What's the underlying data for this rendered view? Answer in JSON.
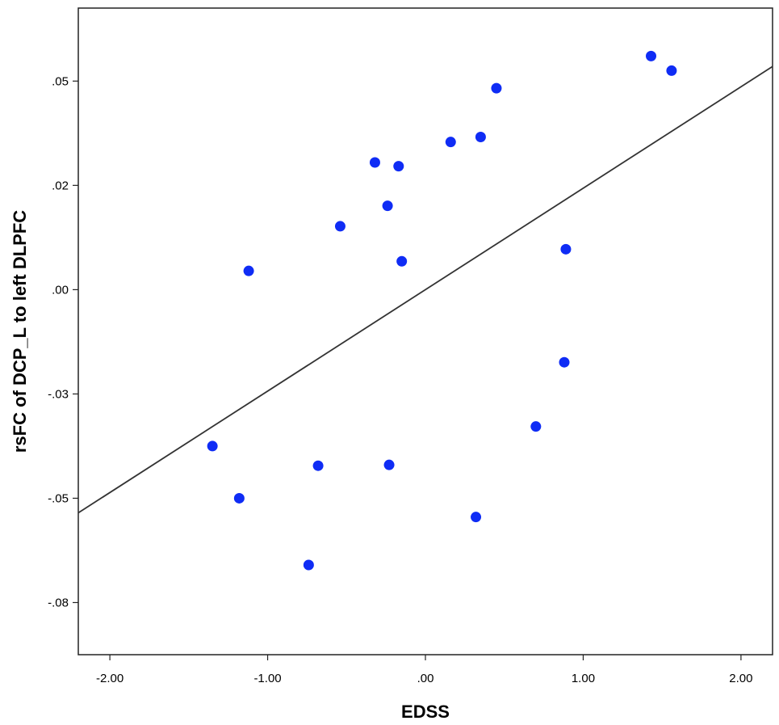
{
  "chart_data": {
    "type": "scatter",
    "title": "",
    "xlabel": "EDSS",
    "ylabel": "rsFC of DCP_L to left DLPFC",
    "xlim": [
      -2.2,
      2.2
    ],
    "ylim": [
      -0.0875,
      0.0675
    ],
    "x_ticks": [
      -2.0,
      -1.0,
      0.0,
      1.0,
      2.0
    ],
    "x_tick_labels": [
      "-2.00",
      "-1.00",
      ".00",
      "1.00",
      "2.00"
    ],
    "y_ticks": [
      -0.075,
      -0.05,
      -0.025,
      0.0,
      0.025,
      0.05
    ],
    "y_tick_labels": [
      "-.08",
      "-.05",
      "-.03",
      ".00",
      ".02",
      ".05"
    ],
    "grid": false,
    "legend": "none",
    "point_color": "#0f2cf5",
    "line_color": "#333333",
    "series": [
      {
        "x": [
          -1.35,
          -1.18,
          -1.12,
          -0.74,
          -0.68,
          -0.54,
          -0.32,
          -0.24,
          -0.23,
          -0.17,
          -0.15,
          0.16,
          0.32,
          0.35,
          0.45,
          0.7,
          0.88,
          0.89,
          1.43,
          1.56
        ],
        "y": [
          -0.0375,
          -0.05,
          0.0045,
          -0.066,
          -0.0422,
          0.0152,
          0.0305,
          0.0201,
          -0.042,
          0.0296,
          0.0068,
          0.0354,
          -0.0545,
          0.0366,
          0.0483,
          -0.0328,
          -0.0174,
          0.0097,
          0.056,
          0.0525
        ]
      }
    ],
    "fit_line": {
      "x": [
        -2.2,
        2.2
      ],
      "y": [
        -0.0535,
        0.0535
      ]
    }
  }
}
